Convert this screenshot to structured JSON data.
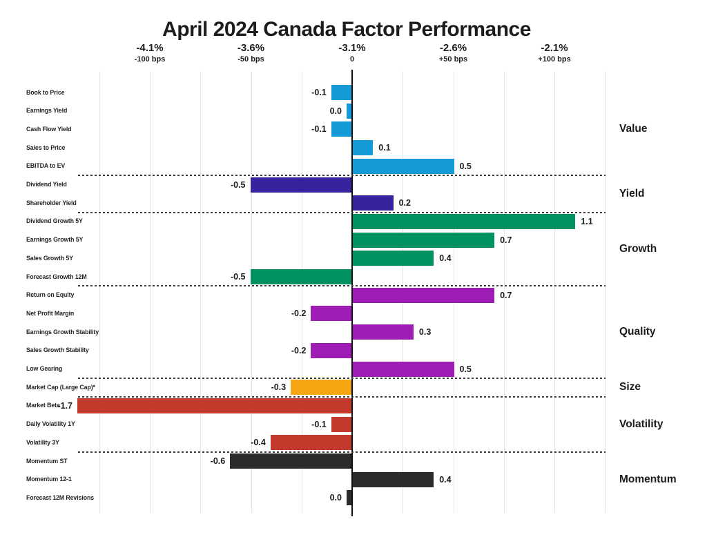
{
  "title": "April 2024 Canada Factor Performance",
  "colors": {
    "text": "#1c1c1c",
    "gridline": "#e4e4e4",
    "zero_line": "#111111",
    "separator": "#3a3a3a",
    "background": "#ffffff"
  },
  "chart_data": {
    "type": "bar",
    "orientation": "horizontal",
    "title": "April 2024 Canada Factor Performance",
    "value_unit": "percent (1.0 = 100 bps)",
    "x_axis": {
      "ticks": [
        {
          "pct": "-4.1%",
          "bps_label": "-100 bps",
          "bps": -100
        },
        {
          "pct": "-3.6%",
          "bps_label": "-50 bps",
          "bps": -50
        },
        {
          "pct": "-3.1%",
          "bps_label": "0",
          "bps": 0
        },
        {
          "pct": "-2.6%",
          "bps_label": "+50 bps",
          "bps": 50
        },
        {
          "pct": "-2.1%",
          "bps_label": "+100 bps",
          "bps": 100
        }
      ],
      "range_bps": [
        -125,
        125
      ],
      "gridline_step_bps": 25,
      "grid": true
    },
    "legend_position": "right-group-labels",
    "groups": [
      {
        "name": "Value",
        "color": "#149AD6",
        "factors": [
          {
            "label": "Book to Price",
            "value": -0.1,
            "value_label": "-0.1"
          },
          {
            "label": "Earnings Yield",
            "value": 0.0,
            "value_label": "0.0"
          },
          {
            "label": "Cash Flow Yield",
            "value": -0.1,
            "value_label": "-0.1"
          },
          {
            "label": "Sales to Price",
            "value": 0.1,
            "value_label": "0.1"
          },
          {
            "label": "EBITDA to EV",
            "value": 0.5,
            "value_label": "0.5"
          }
        ]
      },
      {
        "name": "Yield",
        "color": "#37239D",
        "factors": [
          {
            "label": "Dividend Yield",
            "value": -0.5,
            "value_label": "-0.5"
          },
          {
            "label": "Shareholder Yield",
            "value": 0.2,
            "value_label": "0.2"
          }
        ]
      },
      {
        "name": "Growth",
        "color": "#00915F",
        "factors": [
          {
            "label": "Dividend Growth 5Y",
            "value": 1.1,
            "value_label": "1.1"
          },
          {
            "label": "Earnings Growth 5Y",
            "value": 0.7,
            "value_label": "0.7"
          },
          {
            "label": "Sales Growth 5Y",
            "value": 0.4,
            "value_label": "0.4"
          },
          {
            "label": "Forecast Growth 12M",
            "value": -0.5,
            "value_label": "-0.5"
          }
        ]
      },
      {
        "name": "Quality",
        "color": "#9D1DB5",
        "factors": [
          {
            "label": "Return on Equity",
            "value": 0.7,
            "value_label": "0.7"
          },
          {
            "label": "Net Profit Margin",
            "value": -0.2,
            "value_label": "-0.2"
          },
          {
            "label": "Earnings Growth Stability",
            "value": 0.3,
            "value_label": "0.3"
          },
          {
            "label": "Sales Growth Stability",
            "value": -0.2,
            "value_label": "-0.2"
          },
          {
            "label": "Low Gearing",
            "value": 0.5,
            "value_label": "0.5"
          }
        ]
      },
      {
        "name": "Size",
        "color": "#F7A613",
        "factors": [
          {
            "label": "Market Cap (Large Cap)*",
            "value": -0.3,
            "value_label": "-0.3"
          }
        ]
      },
      {
        "name": "Volatility",
        "color": "#C23A2B",
        "factors": [
          {
            "label": "Market Beta",
            "value": -1.7,
            "value_label": "-1.7"
          },
          {
            "label": "Daily Volatility 1Y",
            "value": -0.1,
            "value_label": "-0.1"
          },
          {
            "label": "Volatility 3Y",
            "value": -0.4,
            "value_label": "-0.4"
          }
        ]
      },
      {
        "name": "Momentum",
        "color": "#2B2B2B",
        "factors": [
          {
            "label": "Momentum ST",
            "value": -0.6,
            "value_label": "-0.6"
          },
          {
            "label": "Momentum 12-1",
            "value": 0.4,
            "value_label": "0.4"
          },
          {
            "label": "Forecast 12M Revisions",
            "value": 0.0,
            "value_label": "0.0"
          }
        ]
      }
    ]
  }
}
